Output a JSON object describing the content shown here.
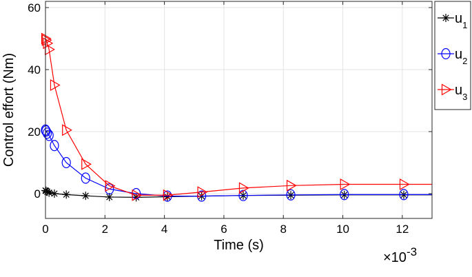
{
  "chart_data": {
    "type": "line",
    "xlabel": "Time (s)",
    "ylabel": "Control effort (Nm)",
    "x_multiplier_base": "×10",
    "x_multiplier_exp": "-3",
    "xlim": [
      0,
      13
    ],
    "ylim": [
      -8,
      62
    ],
    "xticks": [
      0,
      2,
      4,
      6,
      8,
      10,
      12
    ],
    "yticks": [
      0,
      20,
      40,
      60
    ],
    "grid": true,
    "legend_position": "outside-right-top",
    "series": [
      {
        "name": "u",
        "subscript": "1",
        "color": "#000000",
        "marker": "asterisk",
        "x": [
          0,
          0.02,
          0.06,
          0.12,
          0.3,
          0.7,
          1.35,
          2.15,
          3.05,
          4.1,
          5.25,
          6.65,
          8.25,
          10.05,
          12.05,
          13.0
        ],
        "y": [
          1.0,
          0.9,
          0.6,
          0.3,
          0.0,
          -0.3,
          -0.7,
          -1.1,
          -1.2,
          -1.0,
          -0.8,
          -0.6,
          -0.5,
          -0.4,
          -0.4,
          -0.4
        ]
      },
      {
        "name": "u",
        "subscript": "2",
        "color": "#0000ff",
        "marker": "circle",
        "x": [
          0,
          0.02,
          0.06,
          0.12,
          0.3,
          0.7,
          1.35,
          2.15,
          3.05,
          4.1,
          5.25,
          6.65,
          8.25,
          10.05,
          12.05,
          13.0
        ],
        "y": [
          20.5,
          20.2,
          19.5,
          18.8,
          15.5,
          10.0,
          5.0,
          1.5,
          0.0,
          -0.8,
          -0.8,
          -0.6,
          -0.4,
          -0.3,
          -0.3,
          -0.3
        ]
      },
      {
        "name": "u",
        "subscript": "3",
        "color": "#ff0000",
        "marker": "triangle-right",
        "x": [
          0,
          0.02,
          0.06,
          0.12,
          0.3,
          0.7,
          1.35,
          2.15,
          3.05,
          4.1,
          5.25,
          6.65,
          8.25,
          10.05,
          12.05,
          13.0
        ],
        "y": [
          50.0,
          49.5,
          48.5,
          46.5,
          35.0,
          20.5,
          9.5,
          2.5,
          -0.5,
          -0.5,
          0.5,
          1.8,
          2.6,
          3.0,
          3.0,
          3.0
        ]
      }
    ]
  }
}
